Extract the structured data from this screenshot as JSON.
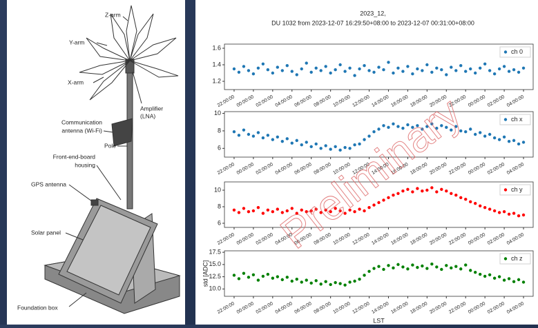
{
  "diagram": {
    "z_arm": "Z-arm",
    "y_arm": "Y-arm",
    "x_arm": "X-arm",
    "amplifier": [
      "Amplifier",
      "(LNA)"
    ],
    "comm_antenna": [
      "Communication",
      "antenna (Wi-Fi)"
    ],
    "pole": "Pole",
    "feb_housing": [
      "Front-end-board",
      "housing"
    ],
    "gps_antenna": "GPS antenna",
    "solar_panel": "Solar panel",
    "foundation_box": "Foundation box"
  },
  "watermark": "Preliminary",
  "chart_data": [
    {
      "type": "scatter",
      "title": "2023_12,",
      "subtitle": "DU 1032 from 2023-12-07 16:29:50+08:00 to 2023-12-07 00:31:00+08:00",
      "x": [
        0,
        0.5,
        1,
        1.5,
        2,
        2.5,
        3,
        3.5,
        4,
        4.5,
        5,
        5.5,
        6,
        6.5,
        7,
        7.5,
        8,
        8.5,
        9,
        9.5,
        10,
        10.5,
        11,
        11.5,
        12,
        12.5,
        13,
        13.5,
        14,
        14.5,
        15,
        15.5,
        16,
        16.5,
        17,
        17.5,
        18,
        18.5,
        19,
        19.5,
        20,
        20.5,
        21,
        21.5,
        22,
        22.5,
        23,
        23.5,
        24,
        24.5,
        25,
        25.5,
        26,
        26.5,
        27,
        27.5,
        28,
        28.5,
        29,
        29.5,
        30
      ],
      "series": [
        {
          "name": "ch 0",
          "color": "#1f77b4",
          "values": [
            1.35,
            1.31,
            1.38,
            1.33,
            1.29,
            1.36,
            1.41,
            1.34,
            1.3,
            1.37,
            1.33,
            1.39,
            1.32,
            1.28,
            1.35,
            1.42,
            1.31,
            1.36,
            1.33,
            1.38,
            1.3,
            1.34,
            1.4,
            1.32,
            1.36,
            1.27,
            1.35,
            1.39,
            1.33,
            1.31,
            1.37,
            1.34,
            1.43,
            1.3,
            1.36,
            1.32,
            1.38,
            1.29,
            1.35,
            1.33,
            1.4,
            1.31,
            1.36,
            1.34,
            1.28,
            1.37,
            1.33,
            1.39,
            1.32,
            1.35,
            1.3,
            1.36,
            1.41,
            1.33,
            1.29,
            1.35,
            1.38,
            1.32,
            1.34,
            1.31,
            1.36
          ]
        }
      ],
      "xlim": [
        -1,
        31
      ],
      "xticks": [
        {
          "value": 0,
          "label": "22:00:00"
        },
        {
          "value": 2,
          "label": "00:00:00"
        },
        {
          "value": 4,
          "label": "02:00:00"
        },
        {
          "value": 6,
          "label": "04:00:00"
        },
        {
          "value": 8,
          "label": "06:00:00"
        },
        {
          "value": 10,
          "label": "08:00:00"
        },
        {
          "value": 12,
          "label": "10:00:00"
        },
        {
          "value": 14,
          "label": "12:00:00"
        },
        {
          "value": 16,
          "label": "14:00:00"
        },
        {
          "value": 18,
          "label": "16:00:00"
        },
        {
          "value": 20,
          "label": "18:00:00"
        },
        {
          "value": 22,
          "label": "20:00:00"
        },
        {
          "value": 24,
          "label": "22:00:00"
        },
        {
          "value": 26,
          "label": "00:00:00"
        },
        {
          "value": 28,
          "label": "02:00:00"
        },
        {
          "value": 30,
          "label": "04:00:00"
        }
      ],
      "ylim": [
        1.1,
        1.65
      ],
      "yticks": [
        1.2,
        1.4,
        1.6
      ],
      "legend": "upper right"
    },
    {
      "type": "scatter",
      "x": [
        0,
        0.5,
        1,
        1.5,
        2,
        2.5,
        3,
        3.5,
        4,
        4.5,
        5,
        5.5,
        6,
        6.5,
        7,
        7.5,
        8,
        8.5,
        9,
        9.5,
        10,
        10.5,
        11,
        11.5,
        12,
        12.5,
        13,
        13.5,
        14,
        14.5,
        15,
        15.5,
        16,
        16.5,
        17,
        17.5,
        18,
        18.5,
        19,
        19.5,
        20,
        20.5,
        21,
        21.5,
        22,
        22.5,
        23,
        23.5,
        24,
        24.5,
        25,
        25.5,
        26,
        26.5,
        27,
        27.5,
        28,
        28.5,
        29,
        29.5,
        30
      ],
      "series": [
        {
          "name": "ch x",
          "color": "#1f77b4",
          "values": [
            7.9,
            7.5,
            8.1,
            7.6,
            7.4,
            7.8,
            7.2,
            7.5,
            7.0,
            7.3,
            6.8,
            7.1,
            6.6,
            6.9,
            6.4,
            6.7,
            6.2,
            6.5,
            6.0,
            6.3,
            5.9,
            6.2,
            5.8,
            6.1,
            6.0,
            6.4,
            6.5,
            7.0,
            7.4,
            7.9,
            8.2,
            8.6,
            8.4,
            8.8,
            8.5,
            8.3,
            8.7,
            8.4,
            8.6,
            8.2,
            8.5,
            8.8,
            8.3,
            8.6,
            8.4,
            8.1,
            8.5,
            8.0,
            7.9,
            8.2,
            7.6,
            7.8,
            7.4,
            7.6,
            7.2,
            7.0,
            7.3,
            6.8,
            6.9,
            6.5,
            6.7
          ]
        }
      ],
      "xlim": [
        -1,
        31
      ],
      "xticks": [
        {
          "value": 0,
          "label": "22:00:00"
        },
        {
          "value": 2,
          "label": "00:00:00"
        },
        {
          "value": 4,
          "label": "02:00:00"
        },
        {
          "value": 6,
          "label": "04:00:00"
        },
        {
          "value": 8,
          "label": "06:00:00"
        },
        {
          "value": 10,
          "label": "08:00:00"
        },
        {
          "value": 12,
          "label": "10:00:00"
        },
        {
          "value": 14,
          "label": "12:00:00"
        },
        {
          "value": 16,
          "label": "14:00:00"
        },
        {
          "value": 18,
          "label": "16:00:00"
        },
        {
          "value": 20,
          "label": "18:00:00"
        },
        {
          "value": 22,
          "label": "20:00:00"
        },
        {
          "value": 24,
          "label": "22:00:00"
        },
        {
          "value": 26,
          "label": "00:00:00"
        },
        {
          "value": 28,
          "label": "02:00:00"
        },
        {
          "value": 30,
          "label": "04:00:00"
        }
      ],
      "ylim": [
        5,
        10.2
      ],
      "yticks": [
        6,
        8,
        10
      ],
      "legend": "upper right"
    },
    {
      "type": "scatter",
      "x": [
        0,
        0.5,
        1,
        1.5,
        2,
        2.5,
        3,
        3.5,
        4,
        4.5,
        5,
        5.5,
        6,
        6.5,
        7,
        7.5,
        8,
        8.5,
        9,
        9.5,
        10,
        10.5,
        11,
        11.5,
        12,
        12.5,
        13,
        13.5,
        14,
        14.5,
        15,
        15.5,
        16,
        16.5,
        17,
        17.5,
        18,
        18.5,
        19,
        19.5,
        20,
        20.5,
        21,
        21.5,
        22,
        22.5,
        23,
        23.5,
        24,
        24.5,
        25,
        25.5,
        26,
        26.5,
        27,
        27.5,
        28,
        28.5,
        29,
        29.5,
        30
      ],
      "series": [
        {
          "name": "ch y",
          "color": "#ff0000",
          "values": [
            7.6,
            7.3,
            7.8,
            7.4,
            7.5,
            7.9,
            7.2,
            7.6,
            7.4,
            7.7,
            7.3,
            7.5,
            7.8,
            7.2,
            7.6,
            7.4,
            7.5,
            7.7,
            7.3,
            7.6,
            7.4,
            7.8,
            7.5,
            7.2,
            7.6,
            7.4,
            7.7,
            7.5,
            7.9,
            8.2,
            8.5,
            8.8,
            9.1,
            9.4,
            9.6,
            9.9,
            10.1,
            9.8,
            10.2,
            9.9,
            10.0,
            10.3,
            9.8,
            10.1,
            9.9,
            9.6,
            9.4,
            9.1,
            8.9,
            8.6,
            8.4,
            8.1,
            7.9,
            7.7,
            7.5,
            7.3,
            7.4,
            7.1,
            7.2,
            6.9,
            7.0
          ]
        }
      ],
      "xlim": [
        -1,
        31
      ],
      "xticks": [
        {
          "value": 0,
          "label": "22:00:00"
        },
        {
          "value": 2,
          "label": "00:00:00"
        },
        {
          "value": 4,
          "label": "02:00:00"
        },
        {
          "value": 6,
          "label": "04:00:00"
        },
        {
          "value": 8,
          "label": "06:00:00"
        },
        {
          "value": 10,
          "label": "08:00:00"
        },
        {
          "value": 12,
          "label": "10:00:00"
        },
        {
          "value": 14,
          "label": "12:00:00"
        },
        {
          "value": 16,
          "label": "14:00:00"
        },
        {
          "value": 18,
          "label": "16:00:00"
        },
        {
          "value": 20,
          "label": "18:00:00"
        },
        {
          "value": 22,
          "label": "20:00:00"
        },
        {
          "value": 24,
          "label": "22:00:00"
        },
        {
          "value": 26,
          "label": "00:00:00"
        },
        {
          "value": 28,
          "label": "02:00:00"
        },
        {
          "value": 30,
          "label": "04:00:00"
        }
      ],
      "ylim": [
        5.5,
        11
      ],
      "yticks": [
        6,
        8,
        10
      ],
      "legend": "upper right"
    },
    {
      "type": "scatter",
      "xlabel": "LST",
      "ylabel": "std [ADC]",
      "x": [
        0,
        0.5,
        1,
        1.5,
        2,
        2.5,
        3,
        3.5,
        4,
        4.5,
        5,
        5.5,
        6,
        6.5,
        7,
        7.5,
        8,
        8.5,
        9,
        9.5,
        10,
        10.5,
        11,
        11.5,
        12,
        12.5,
        13,
        13.5,
        14,
        14.5,
        15,
        15.5,
        16,
        16.5,
        17,
        17.5,
        18,
        18.5,
        19,
        19.5,
        20,
        20.5,
        21,
        21.5,
        22,
        22.5,
        23,
        23.5,
        24,
        24.5,
        25,
        25.5,
        26,
        26.5,
        27,
        27.5,
        28,
        28.5,
        29,
        29.5,
        30
      ],
      "series": [
        {
          "name": "ch z",
          "color": "#008000",
          "values": [
            12.8,
            12.1,
            13.2,
            12.4,
            12.9,
            11.8,
            12.6,
            13.0,
            12.2,
            12.5,
            11.9,
            12.4,
            11.6,
            12.0,
            11.4,
            11.8,
            11.2,
            11.7,
            11.0,
            11.5,
            10.9,
            11.3,
            11.1,
            10.8,
            11.4,
            11.6,
            12.0,
            12.8,
            13.6,
            14.2,
            14.6,
            14.0,
            14.8,
            14.3,
            15.0,
            14.5,
            14.1,
            14.9,
            14.4,
            14.7,
            14.2,
            15.1,
            14.5,
            14.0,
            14.8,
            14.3,
            14.6,
            14.1,
            14.9,
            13.8,
            13.4,
            13.0,
            12.6,
            12.9,
            12.2,
            12.5,
            11.8,
            12.1,
            11.5,
            11.9,
            11.4
          ]
        }
      ],
      "xlim": [
        -1,
        31
      ],
      "xticks": [
        {
          "value": 0,
          "label": "22:00:00"
        },
        {
          "value": 2,
          "label": "00:00:00"
        },
        {
          "value": 4,
          "label": "02:00:00"
        },
        {
          "value": 6,
          "label": "04:00:00"
        },
        {
          "value": 8,
          "label": "06:00:00"
        },
        {
          "value": 10,
          "label": "08:00:00"
        },
        {
          "value": 12,
          "label": "10:00:00"
        },
        {
          "value": 14,
          "label": "12:00:00"
        },
        {
          "value": 16,
          "label": "14:00:00"
        },
        {
          "value": 18,
          "label": "16:00:00"
        },
        {
          "value": 20,
          "label": "18:00:00"
        },
        {
          "value": 22,
          "label": "20:00:00"
        },
        {
          "value": 24,
          "label": "22:00:00"
        },
        {
          "value": 26,
          "label": "00:00:00"
        },
        {
          "value": 28,
          "label": "02:00:00"
        },
        {
          "value": 30,
          "label": "04:00:00"
        }
      ],
      "ylim": [
        8.5,
        17.8
      ],
      "yticks": [
        {
          "value": 10,
          "label": "10.0"
        },
        12.5,
        {
          "value": 15,
          "label": "15.0"
        },
        17.5
      ],
      "legend": "upper right"
    }
  ]
}
